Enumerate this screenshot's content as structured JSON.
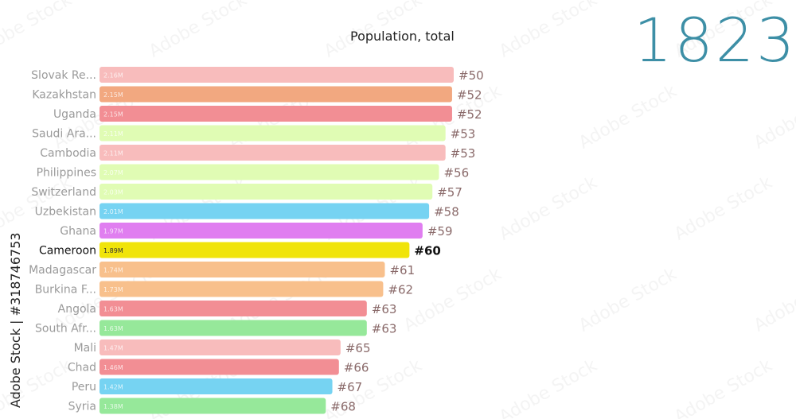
{
  "chart_data": {
    "type": "bar",
    "orientation": "horizontal",
    "title": "Population, total",
    "year": "1823",
    "categories": [
      "Slovak Re...",
      "Kazakhstan",
      "Uganda",
      "Saudi Ara...",
      "Cambodia",
      "Philippines",
      "Switzerland",
      "Uzbekistan",
      "Ghana",
      "Cameroon",
      "Madagascar",
      "Burkina F...",
      "Angola",
      "South Afr...",
      "Mali",
      "Chad",
      "Peru",
      "Syria"
    ],
    "values": [
      2.16,
      2.15,
      2.15,
      2.11,
      2.11,
      2.07,
      2.03,
      2.01,
      1.97,
      1.89,
      1.74,
      1.73,
      1.63,
      1.63,
      1.47,
      1.46,
      1.42,
      1.38
    ],
    "value_labels": [
      "2.16M",
      "2.15M",
      "2.15M",
      "2.11M",
      "2.11M",
      "2.07M",
      "2.03M",
      "2.01M",
      "1.97M",
      "1.89M",
      "1.74M",
      "1.73M",
      "1.63M",
      "1.63M",
      "1.47M",
      "1.46M",
      "1.42M",
      "1.38M"
    ],
    "ranks": [
      "#50",
      "#52",
      "#52",
      "#53",
      "#53",
      "#56",
      "#57",
      "#58",
      "#59",
      "#60",
      "#61",
      "#62",
      "#63",
      "#63",
      "#65",
      "#66",
      "#67",
      "#68"
    ],
    "colors": [
      "#f8bcbc",
      "#f2a880",
      "#f28e94",
      "#e0fcb4",
      "#f8bcbc",
      "#e0fcb4",
      "#e0fcb4",
      "#76d3f2",
      "#e07ef0",
      "#f0e40a",
      "#f8c08c",
      "#f8c08c",
      "#f28e94",
      "#96e89a",
      "#f8bcbc",
      "#f28e94",
      "#76d3f2",
      "#96e89a"
    ],
    "highlight_index": 9,
    "highlight_color": "#f0e40a"
  },
  "credit": "Adobe Stock | #318746753",
  "watermark_text": "Adobe Stock"
}
